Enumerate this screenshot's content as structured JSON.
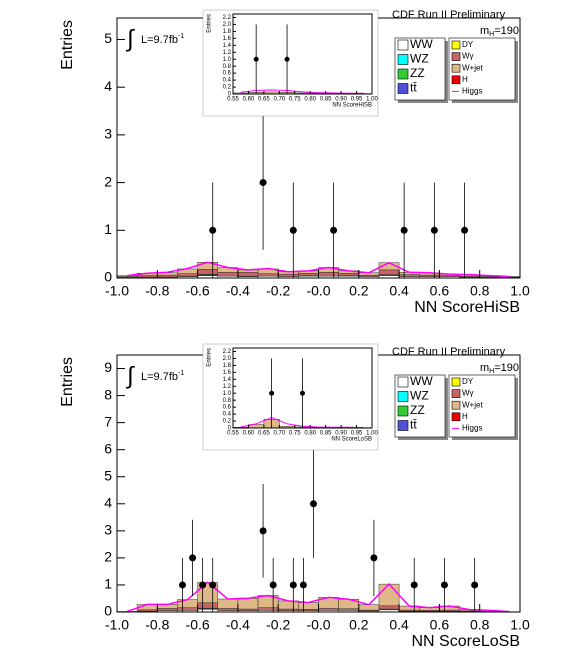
{
  "chart_data": [
    {
      "type": "stacked-histogram",
      "title": "CDF Run II Preliminary",
      "x_label": "NN ScoreHiSB",
      "y_label": "Entries",
      "lumi_prefix": "∫",
      "lumi": "L=9.7fb",
      "lumi_sup": "-1",
      "mass": "m",
      "mass_sub": "H",
      "mass_rest": "=190",
      "xlim": [
        -1,
        1
      ],
      "ylim": [
        0,
        5.45
      ],
      "xticks": [
        {
          "value": -1,
          "label": "-1.0"
        },
        -0.8,
        -0.6,
        -0.4,
        -0.2,
        {
          "value": 0,
          "label": "-0.0"
        },
        0.2,
        0.4,
        0.6,
        0.8,
        {
          "value": 1,
          "label": "1.0"
        }
      ],
      "yticks": [
        0,
        1,
        2,
        3,
        4,
        5
      ],
      "bins": [
        -1,
        -0.9,
        -0.8,
        -0.7,
        -0.6,
        -0.5,
        -0.4,
        -0.3,
        -0.2,
        -0.1,
        0,
        0.1,
        0.2,
        0.3,
        0.4,
        0.5,
        0.6,
        0.7,
        0.8,
        0.9,
        1
      ],
      "series": [
        {
          "name": "WW",
          "color": "#ffffff",
          "values": [
            0.01,
            0.02,
            0.02,
            0.03,
            0.05,
            0.04,
            0.03,
            0.04,
            0.03,
            0.04,
            0.04,
            0.04,
            0.03,
            0.05,
            0.03,
            0.03,
            0.03,
            0.02,
            0.02,
            0.01
          ]
        },
        {
          "name": "WZ",
          "color": "#00ffff",
          "values": [
            0,
            0,
            0,
            0,
            0.01,
            0,
            0,
            0,
            0,
            0.01,
            0,
            0,
            0,
            0.01,
            0,
            0,
            0,
            0,
            0,
            0
          ]
        },
        {
          "name": "ZZ",
          "color": "#33cc33",
          "values": [
            0,
            0,
            0,
            0,
            0.01,
            0,
            0,
            0,
            0,
            0,
            0,
            0.01,
            0,
            0,
            0,
            0,
            0,
            0,
            0,
            0
          ]
        },
        {
          "name": "tt̄",
          "color": "#5050d8",
          "values": [
            0,
            0,
            0,
            0,
            0,
            0,
            0.01,
            0,
            0,
            0,
            0,
            0,
            0,
            0,
            0,
            0,
            0,
            0,
            0,
            0
          ]
        },
        {
          "name": "DY",
          "color": "#ffff00",
          "values": [
            0,
            0,
            0,
            0.01,
            0.01,
            0,
            0,
            0,
            0,
            0,
            0,
            0,
            0,
            0.01,
            0,
            0,
            0,
            0,
            0,
            0
          ]
        },
        {
          "name": "Wγ",
          "color": "#c86464",
          "values": [
            0.02,
            0.03,
            0.04,
            0.05,
            0.1,
            0.08,
            0.08,
            0.05,
            0.05,
            0.05,
            0.08,
            0.05,
            0.03,
            0.1,
            0.04,
            0.03,
            0.02,
            0.02,
            0.01,
            0.01
          ]
        },
        {
          "name": "W+jet",
          "color": "#deb887",
          "values": [
            0.02,
            0.05,
            0.05,
            0.1,
            0.15,
            0.1,
            0.05,
            0.1,
            0.05,
            0.05,
            0.1,
            0.05,
            0.05,
            0.15,
            0.05,
            0.05,
            0.03,
            0.03,
            0.02,
            0.01
          ]
        },
        {
          "name": "H",
          "color": "#ee0000",
          "values": [
            0,
            0,
            0,
            0,
            0,
            0,
            0,
            0,
            0,
            0,
            0,
            0,
            0,
            0,
            0,
            0,
            0,
            0,
            0,
            0
          ]
        },
        {
          "name": "Higgs",
          "color": "#ff00ff",
          "line": true,
          "values": [
            0.05,
            0.1,
            0.12,
            0.2,
            0.33,
            0.22,
            0.17,
            0.2,
            0.13,
            0.15,
            0.22,
            0.15,
            0.11,
            0.32,
            0.12,
            0.11,
            0.08,
            0.07,
            0.05,
            0.03
          ]
        }
      ],
      "points": {
        "x": [
          -0.525,
          -0.275,
          -0.125,
          0.075,
          0.425,
          0.575,
          0.725
        ],
        "y": [
          1,
          2,
          1,
          1,
          1,
          1,
          1
        ],
        "yerr": [
          1,
          1.41,
          1,
          1,
          1,
          1,
          1
        ]
      }
    },
    {
      "type": "stacked-histogram",
      "inset": true,
      "x_label": "NN ScoreHiSB",
      "y_label": "Entries",
      "xlim": [
        0.55,
        1
      ],
      "ylim": [
        0,
        2.3
      ],
      "xticks": [
        0.55,
        {
          "value": 0.6,
          "label": "0.60"
        },
        0.65,
        {
          "value": 0.7,
          "label": "0.70"
        },
        0.75,
        {
          "value": 0.8,
          "label": "0.80"
        },
        0.85,
        {
          "value": 0.9,
          "label": "0.90"
        },
        0.95,
        {
          "value": 1,
          "label": "1.00"
        }
      ],
      "yticks": [
        0,
        0.2,
        0.4,
        0.6,
        0.8,
        {
          "value": 1,
          "label": "1.0"
        },
        1.2,
        1.4,
        1.6,
        1.8,
        {
          "value": 2,
          "label": "2.0"
        },
        2.2
      ],
      "bins": [
        0.55,
        0.6,
        0.65,
        0.7,
        0.75,
        0.8,
        0.85,
        0.9,
        0.95,
        1
      ],
      "series": [
        {
          "name": "W+jet",
          "color": "#deb887",
          "values": [
            0.03,
            0.05,
            0.06,
            0.05,
            0.03,
            0.02,
            0.02,
            0.01,
            0.01
          ]
        },
        {
          "name": "Higgs",
          "color": "#ff00ff",
          "line": true,
          "values": [
            0.05,
            0.1,
            0.12,
            0.1,
            0.06,
            0.04,
            0.03,
            0.02,
            0.02
          ]
        }
      ],
      "points": {
        "x": [
          0.625,
          0.725
        ],
        "y": [
          1,
          1
        ],
        "yerr": [
          1,
          1
        ]
      }
    },
    {
      "type": "stacked-histogram",
      "title": "CDF Run II Preliminary",
      "x_label": "NN ScoreLoSB",
      "y_label": "Entries",
      "lumi_prefix": "∫",
      "lumi": "L=9.7fb",
      "lumi_sup": "-1",
      "mass": "m",
      "mass_sub": "H",
      "mass_rest": "=190",
      "xlim": [
        -1,
        1
      ],
      "ylim": [
        0,
        9.5
      ],
      "xticks": [
        {
          "value": -1,
          "label": "-1.0"
        },
        -0.8,
        -0.6,
        -0.4,
        -0.2,
        {
          "value": 0,
          "label": "-0.0"
        },
        0.2,
        0.4,
        0.6,
        0.8,
        {
          "value": 1,
          "label": "1.0"
        }
      ],
      "yticks": [
        0,
        1,
        2,
        3,
        4,
        5,
        6,
        7,
        8,
        9
      ],
      "bins": [
        -1,
        -0.9,
        -0.8,
        -0.7,
        -0.6,
        -0.5,
        -0.4,
        -0.3,
        -0.2,
        -0.1,
        0,
        0.1,
        0.2,
        0.3,
        0.4,
        0.5,
        0.6,
        0.7,
        0.8,
        0.9,
        1
      ],
      "series": [
        {
          "name": "WW",
          "color": "#ffffff",
          "values": [
            0.02,
            0.03,
            0.05,
            0.06,
            0.1,
            0.05,
            0.05,
            0.06,
            0.05,
            0.05,
            0.06,
            0.06,
            0.04,
            0.08,
            0.03,
            0.03,
            0.03,
            0.02,
            0.02,
            0.01
          ]
        },
        {
          "name": "WZ",
          "color": "#00ffff",
          "values": [
            0,
            0,
            0,
            0,
            0.01,
            0,
            0,
            0,
            0,
            0,
            0,
            0,
            0,
            0.01,
            0,
            0,
            0,
            0,
            0,
            0
          ]
        },
        {
          "name": "ZZ",
          "color": "#33cc33",
          "values": [
            0,
            0,
            0,
            0,
            0.01,
            0,
            0,
            0,
            0,
            0,
            0,
            0,
            0,
            0,
            0,
            0,
            0,
            0,
            0,
            0
          ]
        },
        {
          "name": "tt̄",
          "color": "#5050d8",
          "values": [
            0,
            0,
            0,
            0,
            0,
            0,
            0,
            0,
            0,
            0,
            0,
            0,
            0,
            0,
            0,
            0,
            0,
            0,
            0,
            0
          ]
        },
        {
          "name": "DY",
          "color": "#ffff00",
          "values": [
            0,
            0,
            0,
            0,
            0.02,
            0,
            0,
            0,
            0,
            0,
            0,
            0,
            0,
            0.02,
            0,
            0,
            0,
            0,
            0,
            0
          ]
        },
        {
          "name": "Wγ",
          "color": "#c86464",
          "values": [
            0,
            0.05,
            0.08,
            0.1,
            0.2,
            0.08,
            0.06,
            0.1,
            0.06,
            0.05,
            0.08,
            0.06,
            0.03,
            0.12,
            0.04,
            0.03,
            0.04,
            0.02,
            0.01,
            0
          ]
        },
        {
          "name": "W+jet",
          "color": "#deb887",
          "values": [
            0,
            0.2,
            0.15,
            0.3,
            0.75,
            0.35,
            0.4,
            0.45,
            0.3,
            0.25,
            0.4,
            0.35,
            0.2,
            0.8,
            0.15,
            0.1,
            0.15,
            0.05,
            0.03,
            0
          ]
        },
        {
          "name": "H",
          "color": "#ee0000",
          "values": [
            0,
            0,
            0,
            0,
            0,
            0,
            0,
            0,
            0,
            0,
            0,
            0,
            0,
            0,
            0,
            0,
            0,
            0,
            0,
            0
          ]
        },
        {
          "name": "Higgs",
          "color": "#ff00ff",
          "line": true,
          "values": [
            0.02,
            0.28,
            0.28,
            0.46,
            1.1,
            0.48,
            0.51,
            0.61,
            0.41,
            0.35,
            0.54,
            0.47,
            0.27,
            1.03,
            0.22,
            0.16,
            0.22,
            0.09,
            0.06,
            0.01
          ]
        }
      ],
      "points": {
        "x": [
          -0.675,
          -0.625,
          -0.575,
          -0.525,
          -0.275,
          -0.225,
          -0.125,
          -0.075,
          -0.025,
          0.275,
          0.475,
          0.625,
          0.775
        ],
        "y": [
          1,
          2,
          1,
          1,
          3,
          1,
          1,
          1,
          4,
          2,
          1,
          1,
          1
        ],
        "yerr": [
          1,
          1.41,
          1,
          1,
          1.73,
          1,
          1,
          1,
          2,
          1.41,
          1,
          1,
          1
        ]
      }
    },
    {
      "type": "stacked-histogram",
      "inset": true,
      "x_label": "NN ScoreLoSB",
      "y_label": "Entries",
      "xlim": [
        0.55,
        1
      ],
      "ylim": [
        0,
        2.3
      ],
      "xticks": [
        0.55,
        {
          "value": 0.6,
          "label": "0.60"
        },
        0.65,
        {
          "value": 0.7,
          "label": "0.70"
        },
        0.75,
        {
          "value": 0.8,
          "label": "0.80"
        },
        0.85,
        {
          "value": 0.9,
          "label": "0.90"
        },
        0.95,
        {
          "value": 1,
          "label": "1.00"
        }
      ],
      "yticks": [
        0,
        0.2,
        0.4,
        0.6,
        0.8,
        {
          "value": 1,
          "label": "1.0"
        },
        1.2,
        1.4,
        1.6,
        1.8,
        {
          "value": 2,
          "label": "2.0"
        },
        2.2
      ],
      "bins": [
        0.55,
        0.6,
        0.65,
        0.7,
        0.75,
        0.8,
        0.85,
        0.9,
        0.95,
        1
      ],
      "series": [
        {
          "name": "W+jet",
          "color": "#deb887",
          "values": [
            0.02,
            0.1,
            0.25,
            0.05,
            0.03,
            0.02,
            0.02,
            0.01,
            0.01
          ]
        },
        {
          "name": "Higgs",
          "color": "#ff00ff",
          "line": true,
          "values": [
            0.03,
            0.12,
            0.3,
            0.12,
            0.05,
            0.03,
            0.02,
            0.02,
            0.01
          ]
        }
      ],
      "points": {
        "x": [
          0.675,
          0.775
        ],
        "y": [
          1,
          1
        ],
        "yerr": [
          1,
          1
        ]
      }
    }
  ]
}
